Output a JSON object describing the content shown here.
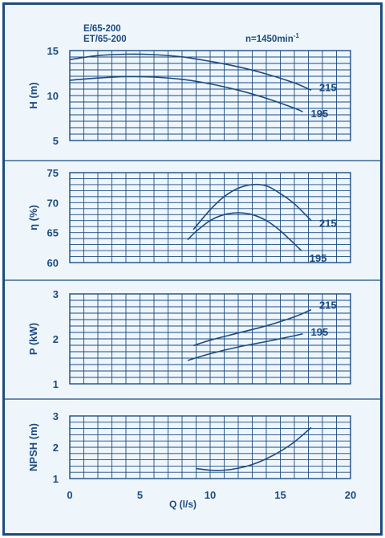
{
  "header": {
    "model_line1": "E/65-200",
    "model_line2": "ET/65-200",
    "speed_label": "n=1450min",
    "speed_exp": "-1"
  },
  "colors": {
    "ink": "#1c4b80",
    "background": "#eef6fc"
  },
  "x_axis": {
    "label": "Q (l/s)",
    "xlim": [
      0,
      20
    ],
    "ticks": [
      "0",
      "5",
      "10",
      "15",
      "20"
    ]
  },
  "chart_data": [
    {
      "type": "line",
      "ylabel": "H (m)",
      "xlabel": "Q (l/s)",
      "xlim": [
        0,
        20
      ],
      "ylim": [
        5,
        15
      ],
      "yticks": [
        "5",
        "10",
        "15"
      ],
      "grid": true,
      "series": [
        {
          "name": "215",
          "x": [
            0,
            2,
            4,
            6,
            8,
            10,
            12,
            14,
            16,
            17.2
          ],
          "y": [
            14.0,
            14.45,
            14.6,
            14.55,
            14.3,
            13.8,
            13.2,
            12.4,
            11.4,
            10.6
          ]
        },
        {
          "name": "195",
          "x": [
            0,
            2,
            4,
            6,
            8,
            10,
            12,
            14,
            16,
            16.6
          ],
          "y": [
            11.7,
            11.95,
            12.1,
            12.05,
            11.8,
            11.3,
            10.6,
            9.7,
            8.6,
            8.2
          ]
        }
      ]
    },
    {
      "type": "line",
      "ylabel": "η (%)",
      "xlabel": "Q (l/s)",
      "xlim": [
        0,
        20
      ],
      "ylim": [
        60,
        75
      ],
      "yticks": [
        "60",
        "65",
        "70",
        "75"
      ],
      "grid": true,
      "series": [
        {
          "name": "215",
          "x": [
            8.8,
            10,
            11,
            12,
            13,
            14,
            15,
            16,
            17.2
          ],
          "y": [
            65.5,
            68.8,
            71.0,
            72.4,
            73.0,
            72.8,
            71.5,
            69.8,
            67.0
          ]
        },
        {
          "name": "195",
          "x": [
            8.4,
            9,
            10,
            11,
            12,
            13,
            14,
            15,
            16.5
          ],
          "y": [
            63.8,
            65.2,
            67.0,
            68.0,
            68.3,
            68.0,
            67.0,
            65.3,
            62.0
          ]
        }
      ]
    },
    {
      "type": "line",
      "ylabel": "P (kW)",
      "xlabel": "Q (l/s)",
      "xlim": [
        0,
        20
      ],
      "ylim": [
        1,
        3
      ],
      "yticks": [
        "1",
        "2",
        "3"
      ],
      "grid": true,
      "series": [
        {
          "name": "215",
          "x": [
            8.8,
            10,
            12,
            14,
            16,
            17.2
          ],
          "y": [
            1.85,
            1.97,
            2.13,
            2.29,
            2.49,
            2.65
          ]
        },
        {
          "name": "195",
          "x": [
            8.4,
            10,
            12,
            14,
            16,
            16.6
          ],
          "y": [
            1.52,
            1.67,
            1.82,
            1.94,
            2.07,
            2.11
          ]
        }
      ]
    },
    {
      "type": "line",
      "ylabel": "NPSH (m)",
      "xlabel": "Q (l/s)",
      "xlim": [
        0,
        20
      ],
      "ylim": [
        1,
        3
      ],
      "yticks": [
        "1",
        "2",
        "3"
      ],
      "grid": true,
      "series": [
        {
          "x": [
            9,
            10,
            11,
            12,
            13,
            14,
            15,
            16,
            17.2
          ],
          "y": [
            1.32,
            1.27,
            1.27,
            1.33,
            1.45,
            1.63,
            1.87,
            2.17,
            2.63
          ]
        }
      ]
    }
  ]
}
